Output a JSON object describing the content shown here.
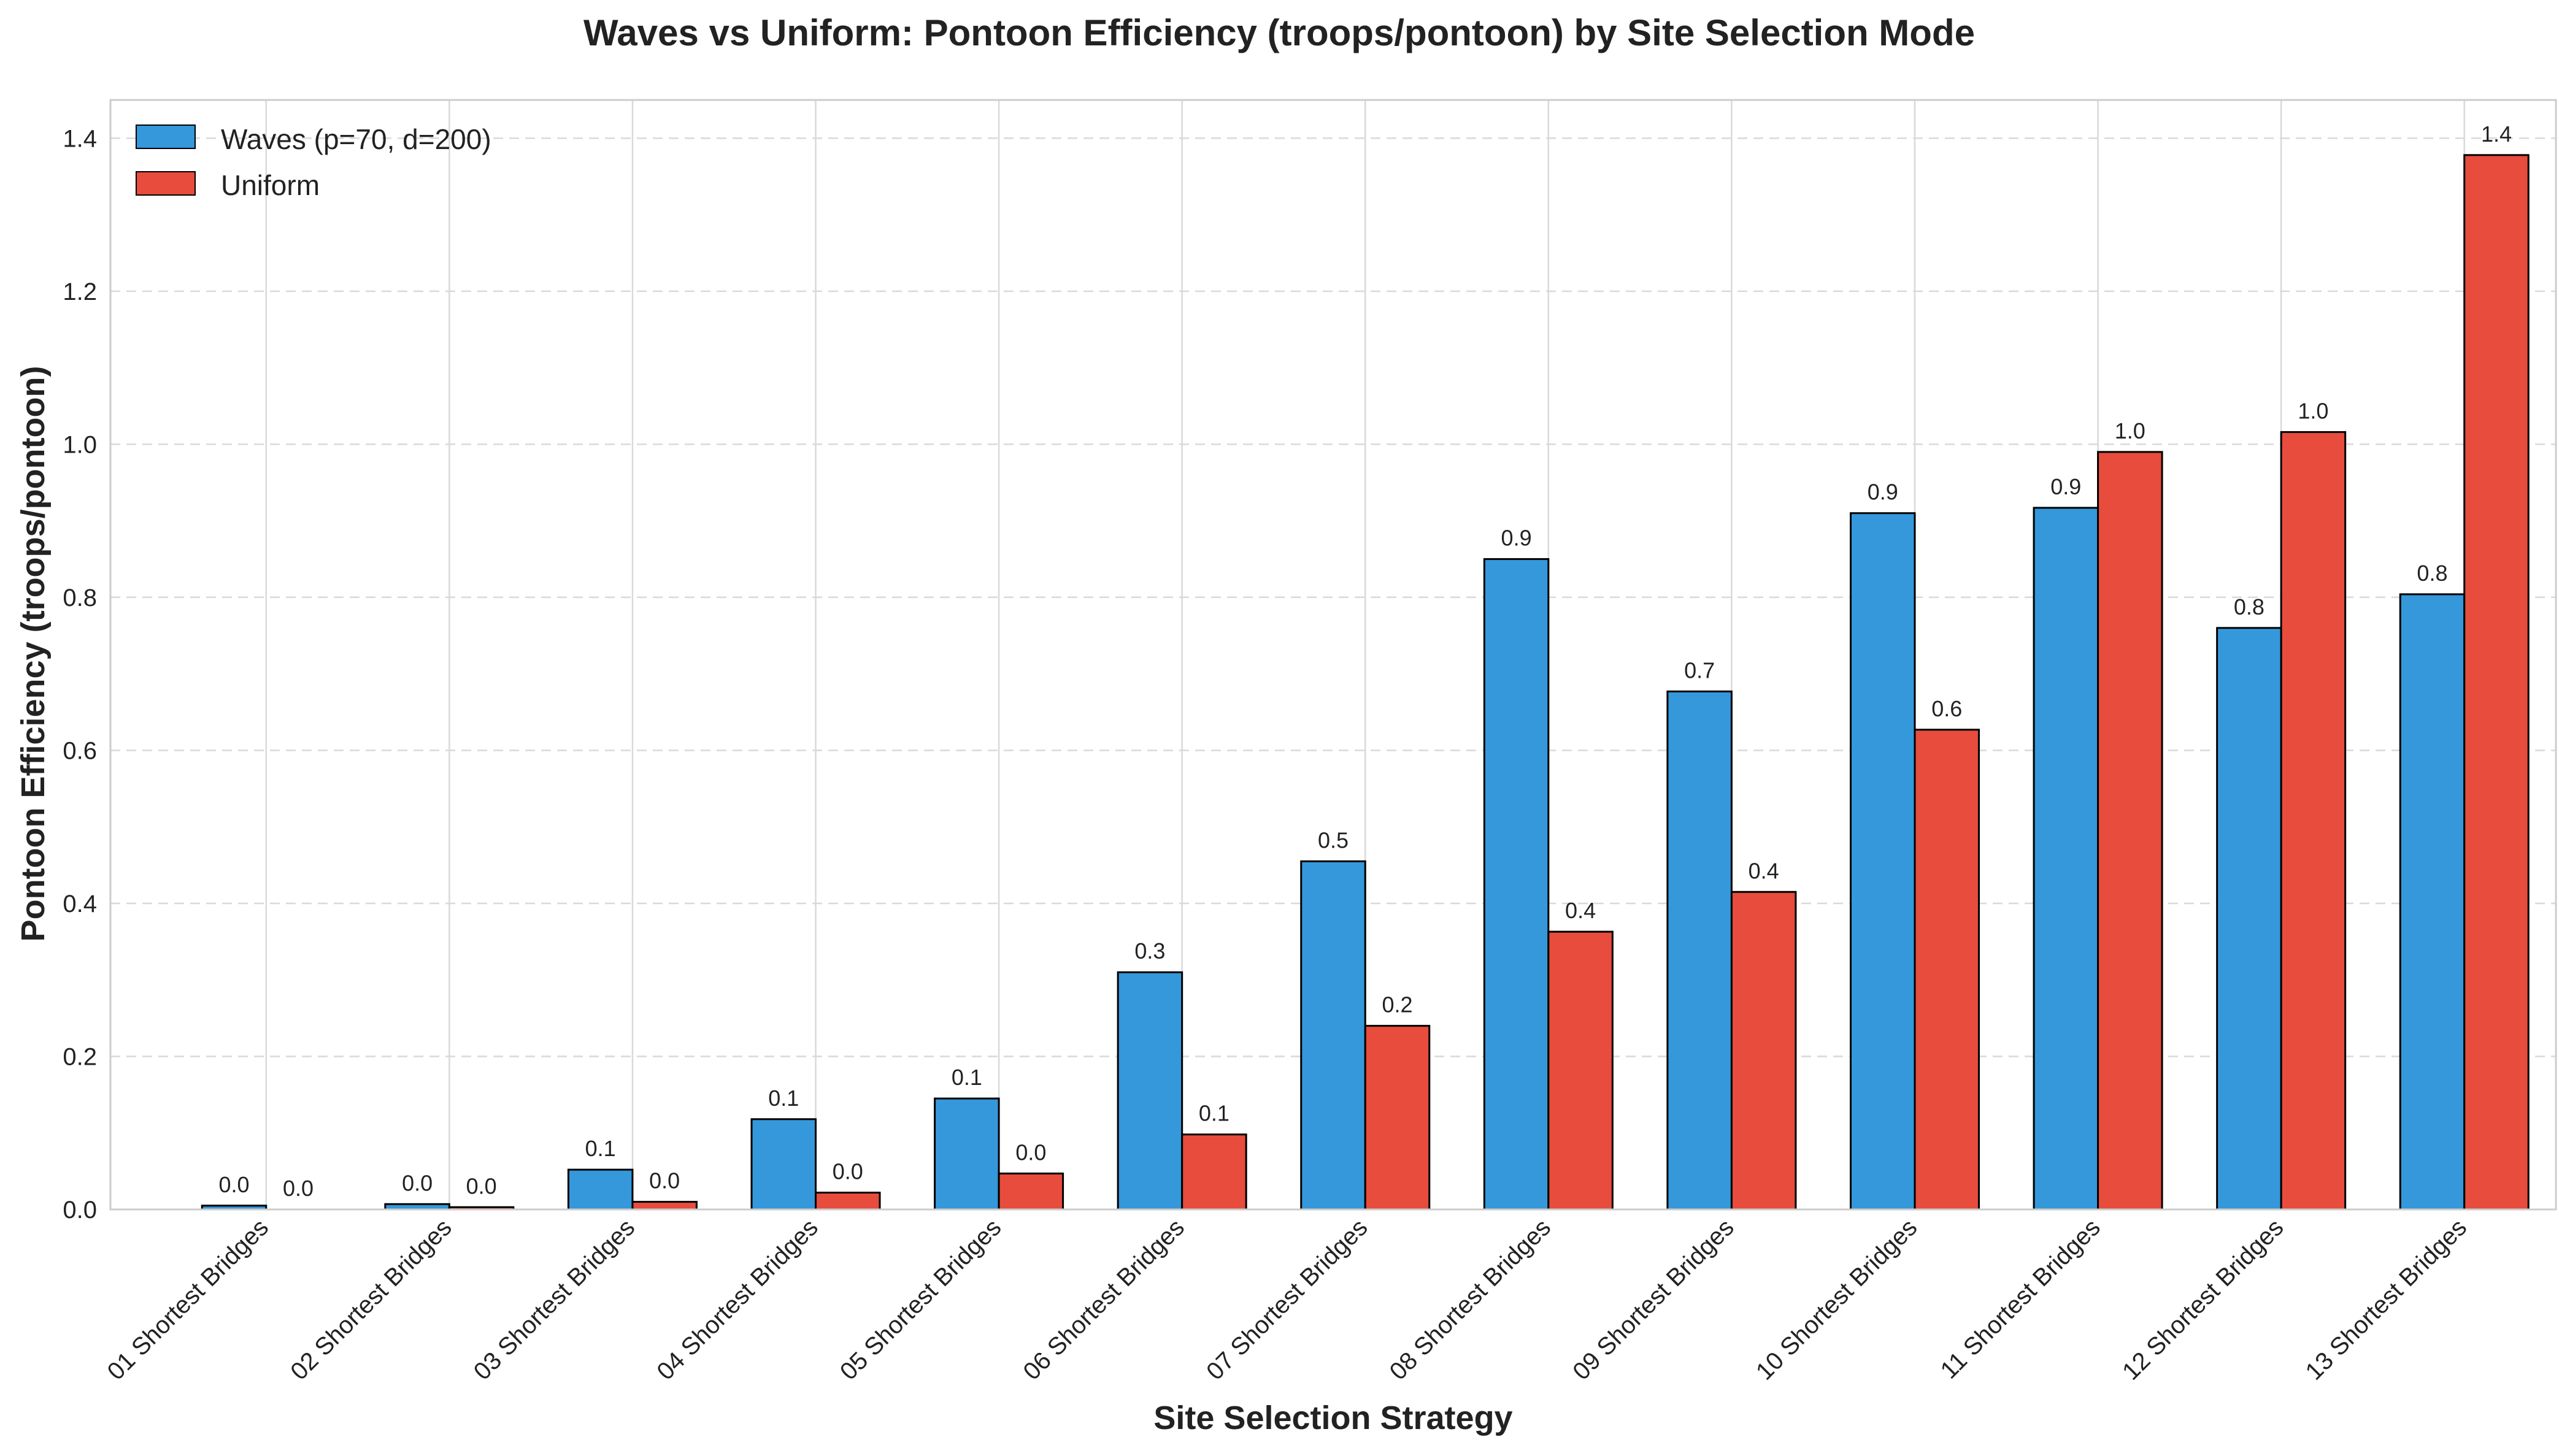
{
  "chart_data": {
    "type": "bar",
    "title": "Waves vs Uniform: Pontoon Efficiency (troops/pontoon) by Site Selection Mode",
    "xlabel": "Site Selection Strategy",
    "ylabel": "Pontoon Efficiency (troops/pontoon)",
    "ylim": [
      0,
      1.45
    ],
    "yticks": [
      "0.0",
      "0.2",
      "0.4",
      "0.6",
      "0.8",
      "1.0",
      "1.2",
      "1.4"
    ],
    "categories": [
      "01 Shortest Bridges",
      "02 Shortest Bridges",
      "03 Shortest Bridges",
      "04 Shortest Bridges",
      "05 Shortest Bridges",
      "06 Shortest Bridges",
      "07 Shortest Bridges",
      "08 Shortest Bridges",
      "09 Shortest Bridges",
      "10 Shortest Bridges",
      "11 Shortest Bridges",
      "12 Shortest Bridges",
      "13 Shortest Bridges"
    ],
    "series": [
      {
        "name": "Waves (p=70, d=200)",
        "color": "#3498db",
        "values": [
          0.005,
          0.007,
          0.052,
          0.118,
          0.145,
          0.31,
          0.455,
          0.85,
          0.677,
          0.91,
          0.917,
          0.76,
          0.804
        ],
        "labels": [
          "0.0",
          "0.0",
          "0.1",
          "0.1",
          "0.1",
          "0.3",
          "0.5",
          "0.9",
          "0.7",
          "0.9",
          "0.9",
          "0.8",
          "0.8"
        ]
      },
      {
        "name": "Uniform",
        "color": "#e74c3c",
        "values": [
          0.0,
          0.003,
          0.01,
          0.022,
          0.047,
          0.098,
          0.24,
          0.363,
          0.415,
          0.627,
          0.99,
          1.016,
          1.378
        ],
        "labels": [
          "0.0",
          "0.0",
          "0.0",
          "0.0",
          "0.0",
          "0.1",
          "0.2",
          "0.4",
          "0.4",
          "0.6",
          "1.0",
          "1.0",
          "1.4"
        ]
      }
    ],
    "grid": {
      "y": "dashed",
      "x": "solid"
    },
    "legend_position": "top-left"
  }
}
